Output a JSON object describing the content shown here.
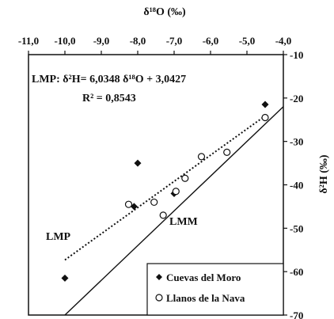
{
  "chart_data": {
    "type": "scatter",
    "xlabel": "δ¹⁸O (‰)",
    "ylabel": "δ²H (‰)",
    "xlim": [
      -11.0,
      -4.0
    ],
    "ylim": [
      -70,
      -10
    ],
    "xaxis_position": "top",
    "yaxis_position": "right",
    "xticks": [
      -11.0,
      -10.0,
      -9.0,
      -8.0,
      -7.0,
      -6.0,
      -5.0,
      -4.0
    ],
    "xtick_labels": [
      "-11,0",
      "-10,0",
      "-9,0",
      "-8,0",
      "-7,0",
      "-6,0",
      "-5,0",
      "-4,0"
    ],
    "yticks": [
      -10,
      -20,
      -30,
      -40,
      -50,
      -60,
      -70
    ],
    "ytick_labels": [
      "-10",
      "-20",
      "-30",
      "-40",
      "-50",
      "-60",
      "-70"
    ],
    "grid": false,
    "legend_position": "bottom-right",
    "series": [
      {
        "name": "Cuevas del Moro",
        "marker": "filled-diamond",
        "points": [
          {
            "x": -10.0,
            "y": -61.5
          },
          {
            "x": -8.0,
            "y": -35.0
          },
          {
            "x": -8.1,
            "y": -45.0
          },
          {
            "x": -7.0,
            "y": -42.0
          },
          {
            "x": -4.5,
            "y": -21.5
          }
        ]
      },
      {
        "name": "Llanos de la Nava",
        "marker": "open-circle",
        "points": [
          {
            "x": -8.25,
            "y": -44.5
          },
          {
            "x": -7.55,
            "y": -44.0
          },
          {
            "x": -7.3,
            "y": -47.0
          },
          {
            "x": -6.95,
            "y": -41.5
          },
          {
            "x": -6.7,
            "y": -38.5
          },
          {
            "x": -6.25,
            "y": -33.5
          },
          {
            "x": -5.55,
            "y": -32.5
          },
          {
            "x": -4.5,
            "y": -24.5
          }
        ]
      }
    ],
    "lines": [
      {
        "name": "LMP",
        "style": "dotted",
        "slope": 6.0348,
        "intercept": 3.0427,
        "x_range": [
          -10.0,
          -4.5
        ]
      },
      {
        "name": "LMM",
        "style": "solid",
        "slope": 8,
        "intercept": 10,
        "x_range": [
          -10.0,
          -4.0
        ]
      }
    ],
    "annotations": {
      "equation": "LMP: δ²H= 6,0348 δ¹⁸O + 3,0427",
      "r_squared": "R² = 0,8543",
      "lmp_label": "LMP",
      "lmm_label": "LMM"
    }
  }
}
